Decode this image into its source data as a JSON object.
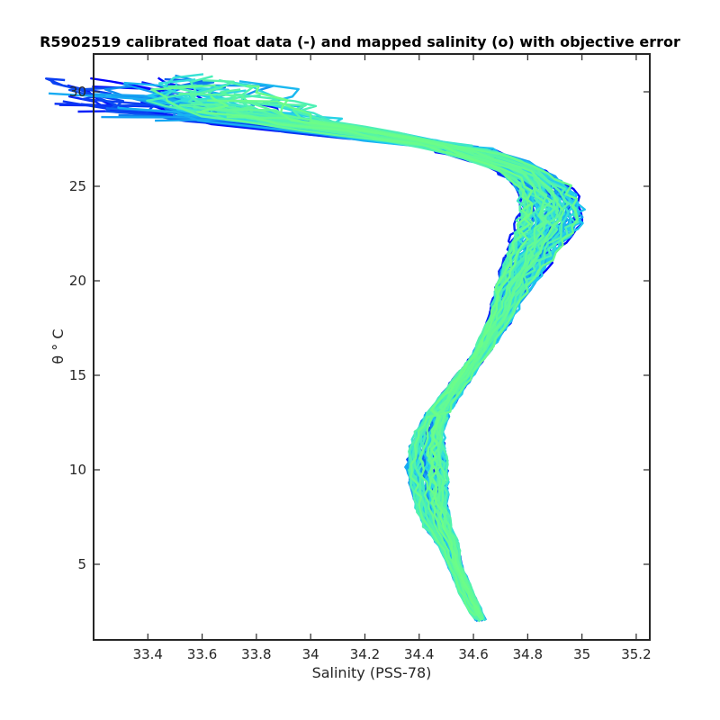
{
  "chart_data": {
    "type": "line",
    "title": "R5902519 calibrated float data (-) and mapped salinity (o) with objective error",
    "xlabel": "Salinity (PSS-78)",
    "ylabel": "θ ° C",
    "xlim": [
      33.2,
      35.25
    ],
    "ylim": [
      1,
      32
    ],
    "xticks": [
      {
        "value": 33.4,
        "label": "33.4"
      },
      {
        "value": 33.6,
        "label": "33.6"
      },
      {
        "value": 33.8,
        "label": "33.8"
      },
      {
        "value": 34.0,
        "label": "34"
      },
      {
        "value": 34.2,
        "label": "34.2"
      },
      {
        "value": 34.4,
        "label": "34.4"
      },
      {
        "value": 34.6,
        "label": "34.6"
      },
      {
        "value": 34.8,
        "label": "34.8"
      },
      {
        "value": 35.0,
        "label": "35"
      },
      {
        "value": 35.2,
        "label": "35.2"
      }
    ],
    "yticks": [
      {
        "value": 5,
        "label": "5"
      },
      {
        "value": 10,
        "label": "10"
      },
      {
        "value": 15,
        "label": "15"
      },
      {
        "value": 20,
        "label": "20"
      },
      {
        "value": 25,
        "label": "25"
      },
      {
        "value": 30,
        "label": "30"
      }
    ],
    "grid": false,
    "legend": "none",
    "colormap": [
      "#0000ff",
      "#0a3cf2",
      "#0e7ff0",
      "#16a6f2",
      "#1ec8ef",
      "#33e0d8",
      "#4ff2b0",
      "#6cfd88"
    ],
    "profile_count": 90,
    "reference_profile": {
      "theta": [
        2.0,
        2.5,
        3.0,
        4.0,
        5.0,
        6.0,
        7.0,
        8.0,
        9.0,
        10.0,
        11.0,
        12.0,
        13.0,
        14.0,
        15.0,
        16.0,
        17.0,
        18.0,
        19.0,
        20.0,
        21.0,
        22.0,
        23.0,
        24.0,
        25.0,
        26.0,
        27.0,
        28.0,
        28.5,
        29.0,
        29.5,
        30.0
      ],
      "salinity": [
        34.63,
        34.61,
        34.59,
        34.56,
        34.53,
        34.51,
        34.47,
        34.45,
        34.44,
        34.43,
        34.43,
        34.44,
        34.47,
        34.52,
        34.57,
        34.62,
        34.66,
        34.7,
        34.73,
        34.76,
        34.8,
        34.84,
        34.88,
        34.89,
        34.86,
        34.76,
        34.55,
        34.1,
        33.9,
        33.75,
        33.7,
        33.7
      ]
    },
    "spread": {
      "theta": [
        2.0,
        3.0,
        5.0,
        7.0,
        9.0,
        10.0,
        11.0,
        12.0,
        14.0,
        16.0,
        18.0,
        20.0,
        22.0,
        23.0,
        24.0,
        26.0,
        28.0,
        29.0,
        30.0
      ],
      "salinity": [
        0.02,
        0.03,
        0.03,
        0.06,
        0.08,
        0.09,
        0.08,
        0.06,
        0.04,
        0.03,
        0.05,
        0.08,
        0.12,
        0.14,
        0.13,
        0.1,
        0.18,
        0.35,
        0.4
      ]
    }
  }
}
